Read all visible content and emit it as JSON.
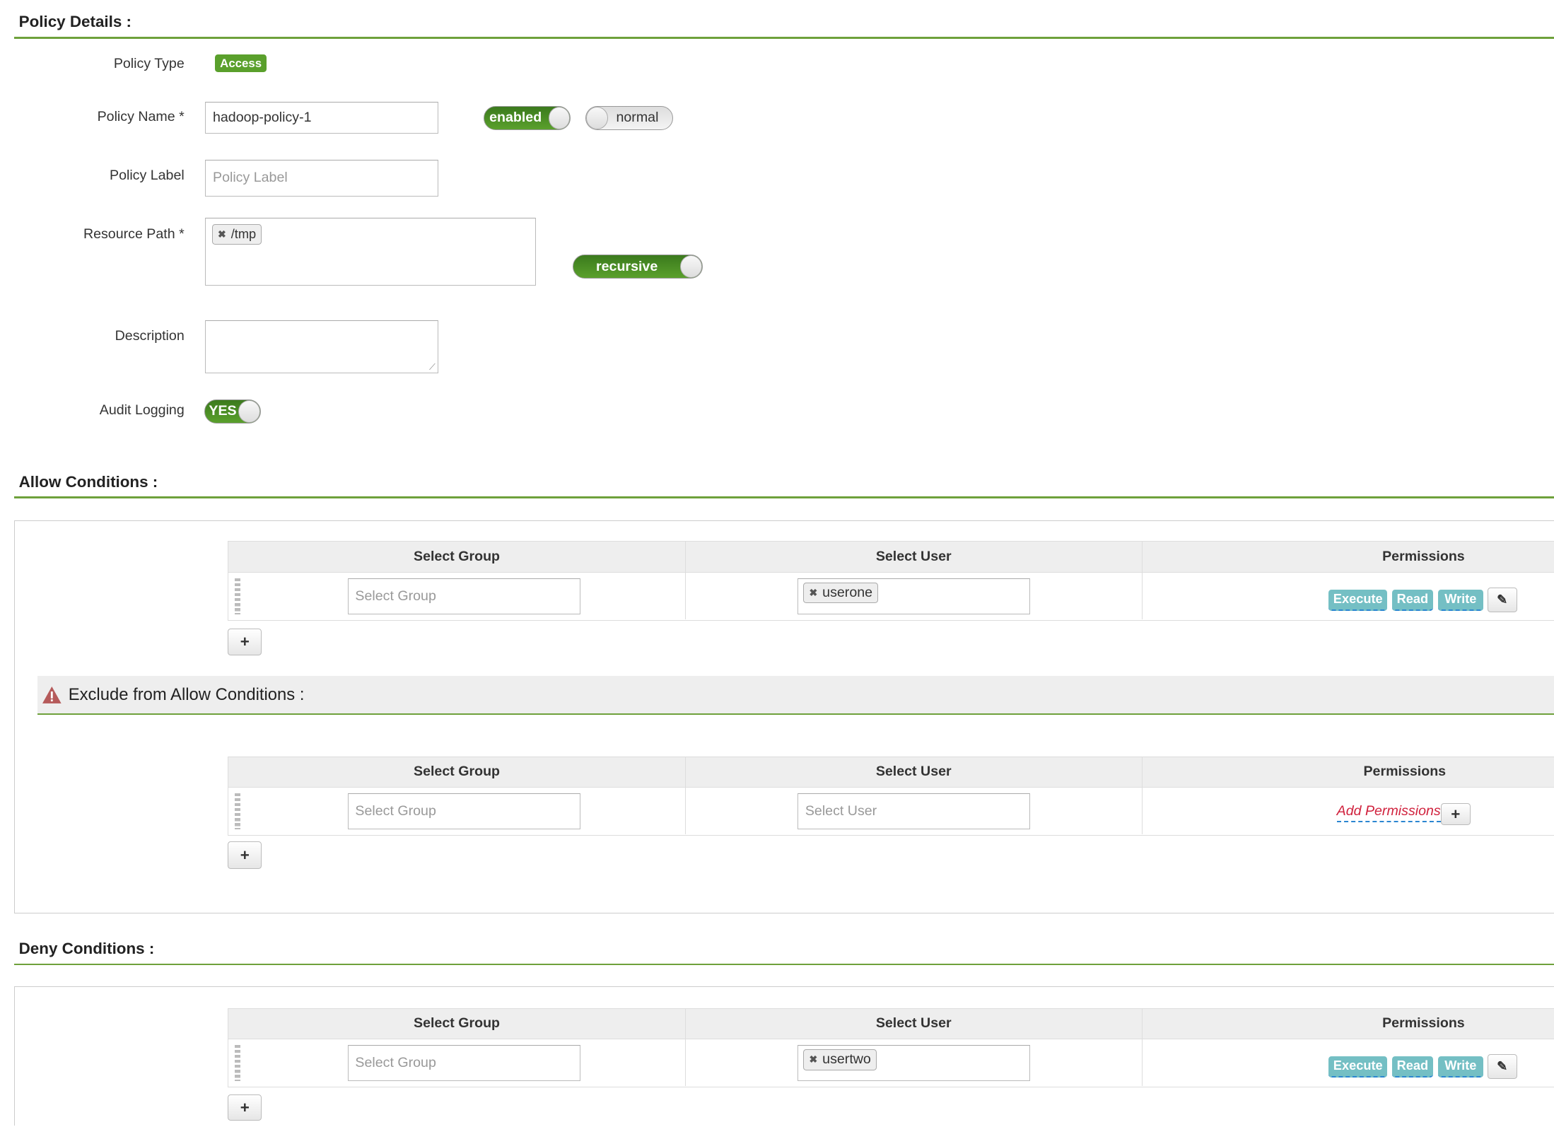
{
  "policy_details": {
    "heading": "Policy Details :",
    "policy_type_label": "Policy Type",
    "policy_type": "Access",
    "policy_name_label": "Policy Name *",
    "policy_name": "hadoop-policy-1",
    "enabled_toggle": "enabled",
    "normal_toggle": "normal",
    "policy_label_label": "Policy Label",
    "policy_label_placeholder": "Policy Label",
    "resource_path_label": "Resource Path *",
    "resource_paths": [
      "/tmp"
    ],
    "recursive_toggle": "recursive",
    "description_label": "Description",
    "audit_logging_label": "Audit Logging",
    "audit_logging": "YES"
  },
  "columns": {
    "group": "Select Group",
    "user": "Select User",
    "permissions": "Permissions"
  },
  "placeholders": {
    "group": "Select Group",
    "user": "Select User"
  },
  "allow": {
    "heading": "Allow Conditions :",
    "user_tag": "userone",
    "permissions": [
      "Execute",
      "Read",
      "Write"
    ],
    "add_button": "+"
  },
  "exclude_allow": {
    "heading": "Exclude from Allow Conditions :",
    "add_permissions": "Add Permissions",
    "add_button": "+"
  },
  "deny": {
    "heading": "Deny Conditions :",
    "user_tag": "usertwo",
    "permissions": [
      "Execute",
      "Read",
      "Write"
    ],
    "add_button": "+"
  },
  "colors": {
    "accent_green": "#5aa02c",
    "permission_tag": "#74bfc4",
    "warning": "#b55a5a",
    "add_permissions": "#d0213d"
  }
}
